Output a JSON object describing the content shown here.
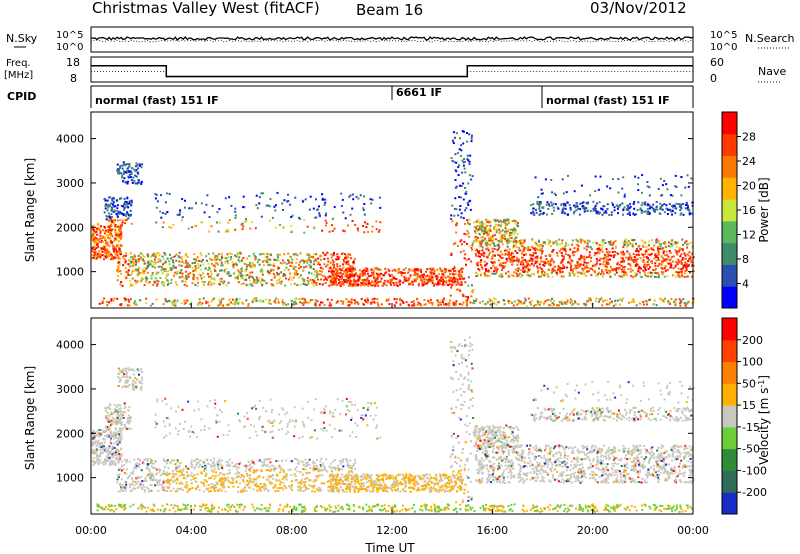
{
  "header": {
    "station": "Christmas Valley West (fitACF)",
    "beam": "Beam 16",
    "date": "03/Nov/2012"
  },
  "panels": {
    "nsky": {
      "left_label": "N.Sky",
      "right_label": "N.Search",
      "left_ticks": [
        "10^5",
        "10^0"
      ],
      "right_ticks": [
        "10^5",
        "10^0"
      ]
    },
    "freq": {
      "left_label_1": "Freq.",
      "left_label_2": "[MHz]",
      "right_label": "Nave",
      "left_ticks": [
        "18",
        "8"
      ],
      "right_ticks": [
        "60",
        "0"
      ]
    },
    "cpid": {
      "label": "CPID",
      "segments": [
        {
          "text": "normal (fast) 151 IF",
          "start_hour": 0
        },
        {
          "text": "6661 IF",
          "start_hour": 12
        },
        {
          "text": "normal (fast) 151 IF",
          "start_hour": 18
        }
      ]
    }
  },
  "chart_data": [
    {
      "type": "heatmap",
      "quantity": "power",
      "ylabel": "Slant Range [km]",
      "yticks": [
        1000,
        2000,
        3000,
        4000
      ],
      "ylim": [
        180,
        4600
      ],
      "x_range_hours": [
        0,
        24
      ],
      "colorbar": {
        "label": "Power [dB]",
        "ticks": [
          "4",
          "8",
          "12",
          "16",
          "20",
          "24",
          "28"
        ],
        "colors": [
          "#0000ff",
          "#2a4fb3",
          "#3f8a68",
          "#5cb85c",
          "#c8e63c",
          "#ffb400",
          "#ff7800",
          "#ff3b00",
          "#ff0000"
        ]
      }
    },
    {
      "type": "heatmap",
      "quantity": "velocity",
      "ylabel": "Slant Range [km]",
      "yticks": [
        1000,
        2000,
        3000,
        4000
      ],
      "ylim": [
        180,
        4600
      ],
      "x_range_hours": [
        0,
        24
      ],
      "colorbar": {
        "label": "Velocity [m s",
        "label_sup": "-1",
        "label_end": "]",
        "ticks": [
          "200",
          "100",
          "50",
          "15",
          "-15",
          "-50",
          "-100",
          "-200"
        ],
        "colors": [
          "#1a2cc8",
          "#2f6d58",
          "#2e8b3a",
          "#6ccf3a",
          "#c8c8c0",
          "#ffb000",
          "#ff8000",
          "#ff4000",
          "#ff0000"
        ]
      }
    }
  ],
  "time_axis": {
    "label": "Time UT",
    "ticks": [
      "00:00",
      "04:00",
      "08:00",
      "12:00",
      "16:00",
      "20:00",
      "00:00"
    ]
  },
  "frequency_data": {
    "hours": [
      0,
      3,
      3,
      15,
      15,
      24
    ],
    "freq_mhz": [
      14.5,
      14.5,
      10.2,
      10.2,
      14.5,
      14.5
    ],
    "nave_hours": [
      0,
      3,
      3,
      15,
      15,
      24
    ],
    "nave": [
      25,
      25,
      12,
      12,
      25,
      25
    ]
  }
}
